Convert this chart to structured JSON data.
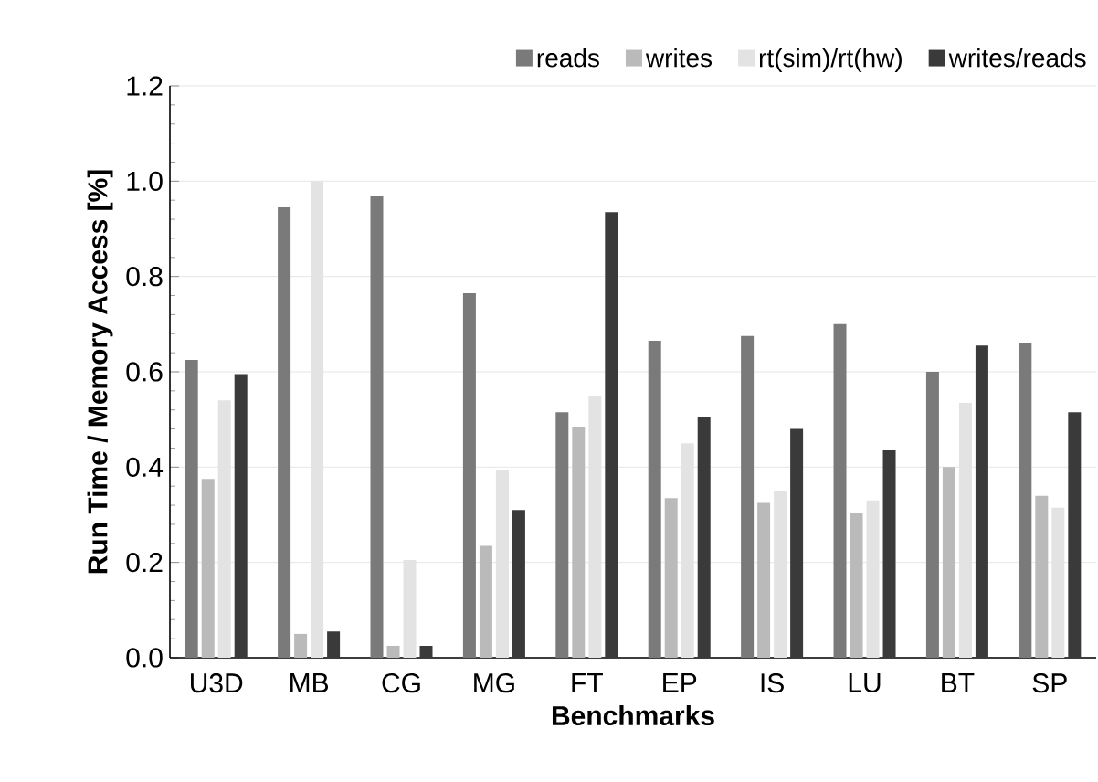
{
  "chart_data": {
    "type": "bar",
    "xlabel": "Benchmarks",
    "ylabel": "Run Time / Memory Access [%]",
    "categories": [
      "U3D",
      "MB",
      "CG",
      "MG",
      "FT",
      "EP",
      "IS",
      "LU",
      "BT",
      "SP"
    ],
    "series": [
      {
        "name": "reads",
        "color": "#7a7a7a",
        "values": [
          0.625,
          0.945,
          0.97,
          0.765,
          0.515,
          0.665,
          0.675,
          0.7,
          0.6,
          0.66
        ]
      },
      {
        "name": "writes",
        "color": "#bababa",
        "values": [
          0.375,
          0.05,
          0.025,
          0.235,
          0.485,
          0.335,
          0.325,
          0.305,
          0.4,
          0.34
        ]
      },
      {
        "name": "rt(sim)/rt(hw)",
        "color": "#e3e3e3",
        "values": [
          0.54,
          1.0,
          0.205,
          0.395,
          0.55,
          0.45,
          0.35,
          0.33,
          0.535,
          0.315
        ]
      },
      {
        "name": "writes/reads",
        "color": "#3a3a3a",
        "values": [
          0.595,
          0.055,
          0.025,
          0.31,
          0.935,
          0.505,
          0.48,
          0.435,
          0.655,
          0.515
        ]
      }
    ],
    "ylim": [
      0,
      1.2
    ],
    "yticks": [
      {
        "value": 0,
        "label": "0.0"
      },
      0.2,
      0.4,
      0.6,
      0.8,
      {
        "value": 1,
        "label": "1.0"
      },
      1.2
    ],
    "grid": "y",
    "legend": "top"
  }
}
